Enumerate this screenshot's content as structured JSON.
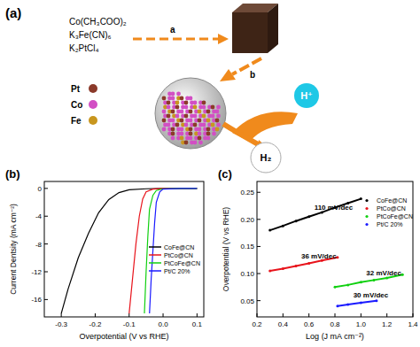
{
  "diagram": {
    "label": "(a)",
    "reagents": [
      "Co(CH₃COO)₂",
      "K₃Fe(CN)₆",
      "K₂PtCl₄"
    ],
    "steps": [
      "a",
      "b"
    ],
    "legend": [
      {
        "name": "Pt",
        "color": "#8b3a2a"
      },
      {
        "name": "Co",
        "color": "#d24fc4"
      },
      {
        "name": "Fe",
        "color": "#c8961e"
      }
    ],
    "proton": "H⁺",
    "product": "H₂"
  },
  "chart_data": [
    {
      "type": "line",
      "title": "(b)",
      "x_label": "Overpotential (V vs RHE)",
      "y_label": "Current Dentsity (mA cm⁻²)",
      "xlim": [
        -0.35,
        0.12
      ],
      "ylim": [
        -18.5,
        1
      ],
      "xticks": [
        -0.3,
        -0.2,
        -0.1,
        {
          "value": 0,
          "label": "0.0"
        },
        0.1
      ],
      "yticks": [
        0,
        -4,
        -8,
        -12,
        -16
      ],
      "legend": "lower right",
      "grid": false,
      "series": [
        {
          "name": "CoFe@CN",
          "color": "#000000",
          "x": [
            0.1,
            0.05,
            0,
            -0.05,
            -0.1,
            -0.13,
            -0.16,
            -0.19,
            -0.22,
            -0.25,
            -0.28,
            -0.3
          ],
          "values": [
            0,
            0,
            0,
            -0.05,
            -0.2,
            -0.6,
            -1.6,
            -3.5,
            -6.5,
            -10,
            -14.5,
            -18
          ]
        },
        {
          "name": "PtCo@CN",
          "color": "#e8141c",
          "x": [
            0.1,
            0.05,
            0,
            -0.03,
            -0.05,
            -0.06,
            -0.07,
            -0.08,
            -0.09,
            -0.1
          ],
          "values": [
            0,
            0,
            0,
            -0.1,
            -0.5,
            -1.5,
            -4,
            -8,
            -13,
            -18
          ]
        },
        {
          "name": "PtCoFe@CN",
          "color": "#10d010",
          "x": [
            0.1,
            0.05,
            0,
            -0.02,
            -0.03,
            -0.04,
            -0.045,
            -0.05,
            -0.055
          ],
          "values": [
            0,
            0,
            -0.05,
            -0.3,
            -1,
            -3,
            -7,
            -12,
            -18
          ]
        },
        {
          "name": "Pt/C 20%",
          "color": "#1a1aff",
          "x": [
            0.1,
            0.05,
            0,
            -0.01,
            -0.02,
            -0.025,
            -0.03,
            -0.035,
            -0.04
          ],
          "values": [
            0,
            0,
            -0.1,
            -0.5,
            -2,
            -5,
            -9,
            -13,
            -18
          ]
        }
      ]
    },
    {
      "type": "scatter",
      "title": "(c)",
      "x_label": "Log (J mA cm⁻²)",
      "y_label": "Overpotential (V vs RHE)",
      "xlim": [
        0.2,
        1.4
      ],
      "ylim": [
        0.02,
        0.27
      ],
      "xticks": [
        0.2,
        0.4,
        0.6,
        0.8,
        {
          "value": 1,
          "label": "1.0"
        },
        1.2,
        1.4
      ],
      "yticks": [
        0.05,
        {
          "value": 0.1,
          "label": "0.10"
        },
        0.15,
        {
          "value": 0.2,
          "label": "0.20"
        },
        0.25
      ],
      "legend": "upper right",
      "grid": false,
      "marker": "circle",
      "line_style": "solid",
      "annotations": [
        "110 mV/dec",
        "36 mV/dec",
        "32 mV/dec",
        "30 mV/dec"
      ],
      "series": [
        {
          "name": "CoFe@CN",
          "color": "#000000",
          "x": [
            0.3,
            0.4,
            0.5,
            0.6,
            0.7,
            0.8,
            0.9,
            1.0
          ],
          "values": [
            0.18,
            0.188,
            0.197,
            0.205,
            0.213,
            0.222,
            0.23,
            0.238
          ]
        },
        {
          "name": "PtCo@CN",
          "color": "#e8141c",
          "x": [
            0.3,
            0.4,
            0.5,
            0.6,
            0.7,
            0.82
          ],
          "values": [
            0.105,
            0.109,
            0.114,
            0.119,
            0.124,
            0.13
          ]
        },
        {
          "name": "PtCoFe@CN",
          "color": "#10d010",
          "x": [
            0.8,
            0.9,
            1.0,
            1.1,
            1.2,
            1.32
          ],
          "values": [
            0.075,
            0.079,
            0.084,
            0.088,
            0.092,
            0.098
          ]
        },
        {
          "name": "Pt/C 20%",
          "color": "#1a1aff",
          "x": [
            0.82,
            0.9,
            1.0,
            1.12
          ],
          "values": [
            0.04,
            0.043,
            0.046,
            0.05
          ]
        }
      ]
    }
  ]
}
